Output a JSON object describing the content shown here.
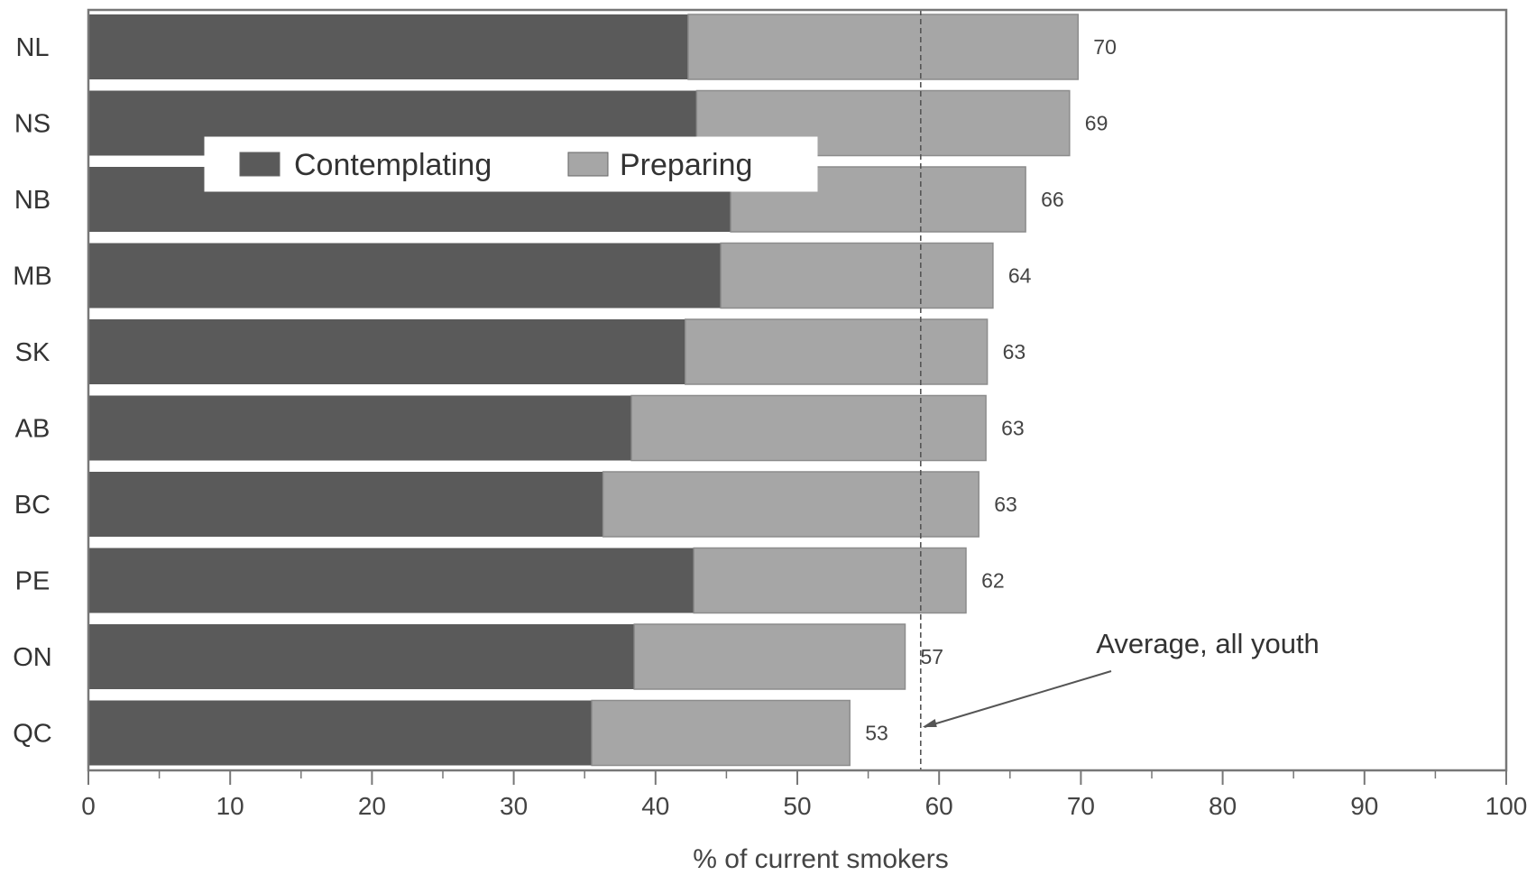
{
  "chart_data": {
    "type": "bar",
    "orientation": "horizontal",
    "stacked": true,
    "categories": [
      "NL",
      "NS",
      "NB",
      "MB",
      "SK",
      "AB",
      "BC",
      "PE",
      "ON",
      "QC"
    ],
    "series": [
      {
        "name": "Contemplating",
        "color": "#5a5a5a",
        "values": [
          42.3,
          42.9,
          45.3,
          44.6,
          42.1,
          38.3,
          36.3,
          42.7,
          38.5,
          35.5
        ]
      },
      {
        "name": "Preparing",
        "color": "#a6a6a6",
        "values": [
          27.5,
          26.3,
          20.8,
          19.2,
          21.3,
          25.0,
          26.5,
          19.2,
          19.1,
          18.2
        ]
      }
    ],
    "totals": [
      "70",
      "69",
      "66",
      "64",
      "63",
      "63",
      "63",
      "62",
      "57",
      "53"
    ],
    "xlabel": "% of current smokers",
    "xlim": [
      0,
      100
    ],
    "xticks": [
      "0",
      "10",
      "20",
      "30",
      "40",
      "50",
      "60",
      "70",
      "80",
      "90",
      "100"
    ],
    "reference_line": {
      "value": 58.7,
      "label": "Average, all youth",
      "style": "dashed"
    },
    "legend_position": "top-left",
    "grid": false
  }
}
